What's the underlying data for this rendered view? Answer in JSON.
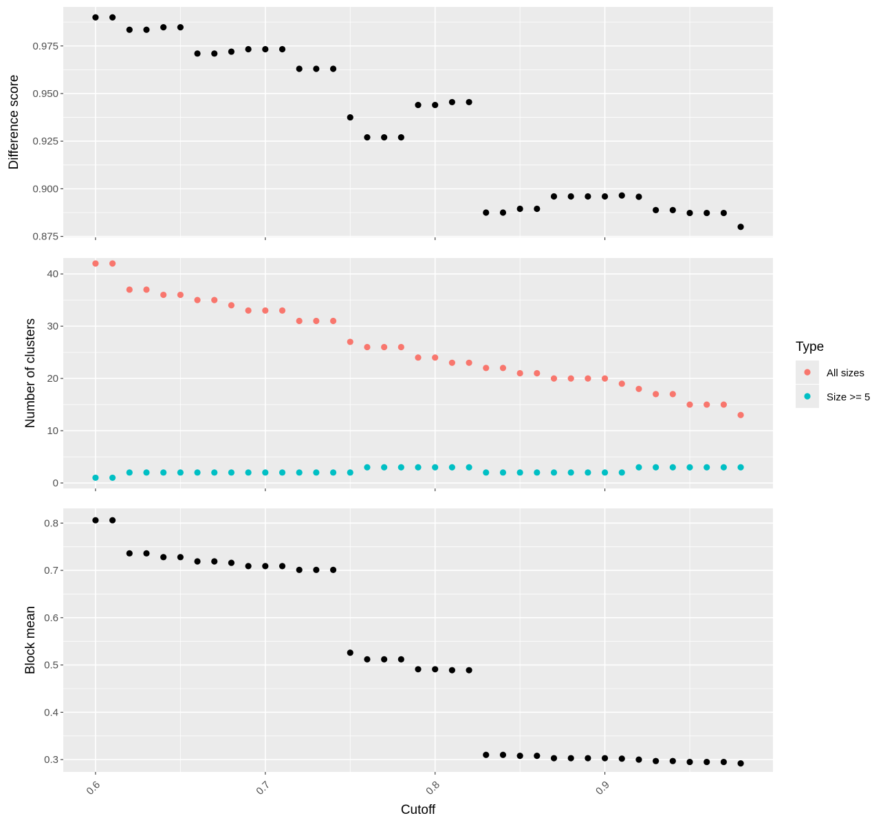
{
  "chart_data": [
    {
      "type": "scatter",
      "panel": "top",
      "ylabel": "Difference score",
      "xlim": [
        0.581,
        0.999
      ],
      "ylim": [
        0.8745,
        0.9955
      ],
      "x_ticks": [
        0.6,
        0.7,
        0.8,
        0.9
      ],
      "x_tick_labels": [
        "0.6",
        "0.7",
        "0.8",
        "0.9"
      ],
      "y_ticks": [
        0.875,
        0.9,
        0.925,
        0.95,
        0.975
      ],
      "y_tick_labels": [
        "0.875",
        "0.900",
        "0.925",
        "0.950",
        "0.975"
      ],
      "grid": true,
      "show_x_tick_labels": false,
      "series": [
        {
          "color": "#000000",
          "x": [
            0.6,
            0.61,
            0.62,
            0.63,
            0.64,
            0.65,
            0.66,
            0.67,
            0.68,
            0.69,
            0.7,
            0.71,
            0.72,
            0.73,
            0.74,
            0.75,
            0.76,
            0.77,
            0.78,
            0.79,
            0.8,
            0.81,
            0.82,
            0.83,
            0.84,
            0.85,
            0.86,
            0.87,
            0.88,
            0.89,
            0.9,
            0.91,
            0.92,
            0.93,
            0.94,
            0.95,
            0.96,
            0.97,
            0.98
          ],
          "y": [
            0.99,
            0.99,
            0.9835,
            0.9835,
            0.9848,
            0.9848,
            0.971,
            0.971,
            0.972,
            0.9733,
            0.9733,
            0.9733,
            0.963,
            0.963,
            0.963,
            0.9375,
            0.927,
            0.927,
            0.927,
            0.944,
            0.944,
            0.9455,
            0.9455,
            0.8875,
            0.8875,
            0.8895,
            0.8895,
            0.896,
            0.896,
            0.896,
            0.896,
            0.8965,
            0.8958,
            0.8888,
            0.8888,
            0.8873,
            0.8873,
            0.8873,
            0.88
          ]
        }
      ]
    },
    {
      "type": "scatter",
      "panel": "middle",
      "ylabel": "Number of clusters",
      "xlim": [
        0.581,
        0.999
      ],
      "ylim": [
        -1.05,
        43.05
      ],
      "x_ticks": [
        0.6,
        0.7,
        0.8,
        0.9
      ],
      "x_tick_labels": [
        "0.6",
        "0.7",
        "0.8",
        "0.9"
      ],
      "y_ticks": [
        0,
        10,
        20,
        30,
        40
      ],
      "y_tick_labels": [
        "0",
        "10",
        "20",
        "30",
        "40"
      ],
      "grid": true,
      "show_x_tick_labels": false,
      "legend": {
        "title": "Type",
        "placement": "right"
      },
      "series": [
        {
          "name": "All sizes",
          "color": "#F8766D",
          "x": [
            0.6,
            0.61,
            0.62,
            0.63,
            0.64,
            0.65,
            0.66,
            0.67,
            0.68,
            0.69,
            0.7,
            0.71,
            0.72,
            0.73,
            0.74,
            0.75,
            0.76,
            0.77,
            0.78,
            0.79,
            0.8,
            0.81,
            0.82,
            0.83,
            0.84,
            0.85,
            0.86,
            0.87,
            0.88,
            0.89,
            0.9,
            0.91,
            0.92,
            0.93,
            0.94,
            0.95,
            0.96,
            0.97,
            0.98
          ],
          "y": [
            42,
            42,
            37,
            37,
            36,
            36,
            35,
            35,
            34,
            33,
            33,
            33,
            31,
            31,
            31,
            27,
            26,
            26,
            26,
            24,
            24,
            23,
            23,
            22,
            22,
            21,
            21,
            20,
            20,
            20,
            20,
            19,
            18,
            17,
            17,
            15,
            15,
            15,
            13
          ]
        },
        {
          "name": "Size >= 5",
          "color": "#00BFC4",
          "x": [
            0.6,
            0.61,
            0.62,
            0.63,
            0.64,
            0.65,
            0.66,
            0.67,
            0.68,
            0.69,
            0.7,
            0.71,
            0.72,
            0.73,
            0.74,
            0.75,
            0.76,
            0.77,
            0.78,
            0.79,
            0.8,
            0.81,
            0.82,
            0.83,
            0.84,
            0.85,
            0.86,
            0.87,
            0.88,
            0.89,
            0.9,
            0.91,
            0.92,
            0.93,
            0.94,
            0.95,
            0.96,
            0.97,
            0.98
          ],
          "y": [
            1,
            1,
            2,
            2,
            2,
            2,
            2,
            2,
            2,
            2,
            2,
            2,
            2,
            2,
            2,
            2,
            3,
            3,
            3,
            3,
            3,
            3,
            3,
            2,
            2,
            2,
            2,
            2,
            2,
            2,
            2,
            2,
            3,
            3,
            3,
            3,
            3,
            3,
            3
          ]
        }
      ]
    },
    {
      "type": "scatter",
      "panel": "bottom",
      "ylabel": "Block mean",
      "xlabel": "Cutoff",
      "xlim": [
        0.581,
        0.999
      ],
      "ylim": [
        0.274,
        0.831
      ],
      "x_ticks": [
        0.6,
        0.7,
        0.8,
        0.9
      ],
      "x_tick_labels": [
        "0.6",
        "0.7",
        "0.8",
        "0.9"
      ],
      "y_ticks": [
        0.3,
        0.4,
        0.5,
        0.6,
        0.7,
        0.8
      ],
      "y_tick_labels": [
        "0.3",
        "0.4",
        "0.5",
        "0.6",
        "0.7",
        "0.8"
      ],
      "grid": true,
      "show_x_tick_labels": true,
      "series": [
        {
          "color": "#000000",
          "x": [
            0.6,
            0.61,
            0.62,
            0.63,
            0.64,
            0.65,
            0.66,
            0.67,
            0.68,
            0.69,
            0.7,
            0.71,
            0.72,
            0.73,
            0.74,
            0.75,
            0.76,
            0.77,
            0.78,
            0.79,
            0.8,
            0.81,
            0.82,
            0.83,
            0.84,
            0.85,
            0.86,
            0.87,
            0.88,
            0.89,
            0.9,
            0.91,
            0.92,
            0.93,
            0.94,
            0.95,
            0.96,
            0.97,
            0.98
          ],
          "y": [
            0.806,
            0.806,
            0.736,
            0.736,
            0.728,
            0.728,
            0.719,
            0.719,
            0.716,
            0.709,
            0.709,
            0.709,
            0.701,
            0.701,
            0.701,
            0.526,
            0.512,
            0.512,
            0.512,
            0.491,
            0.491,
            0.489,
            0.489,
            0.31,
            0.31,
            0.308,
            0.308,
            0.303,
            0.303,
            0.303,
            0.303,
            0.302,
            0.3,
            0.297,
            0.297,
            0.295,
            0.295,
            0.295,
            0.292
          ]
        }
      ]
    }
  ]
}
